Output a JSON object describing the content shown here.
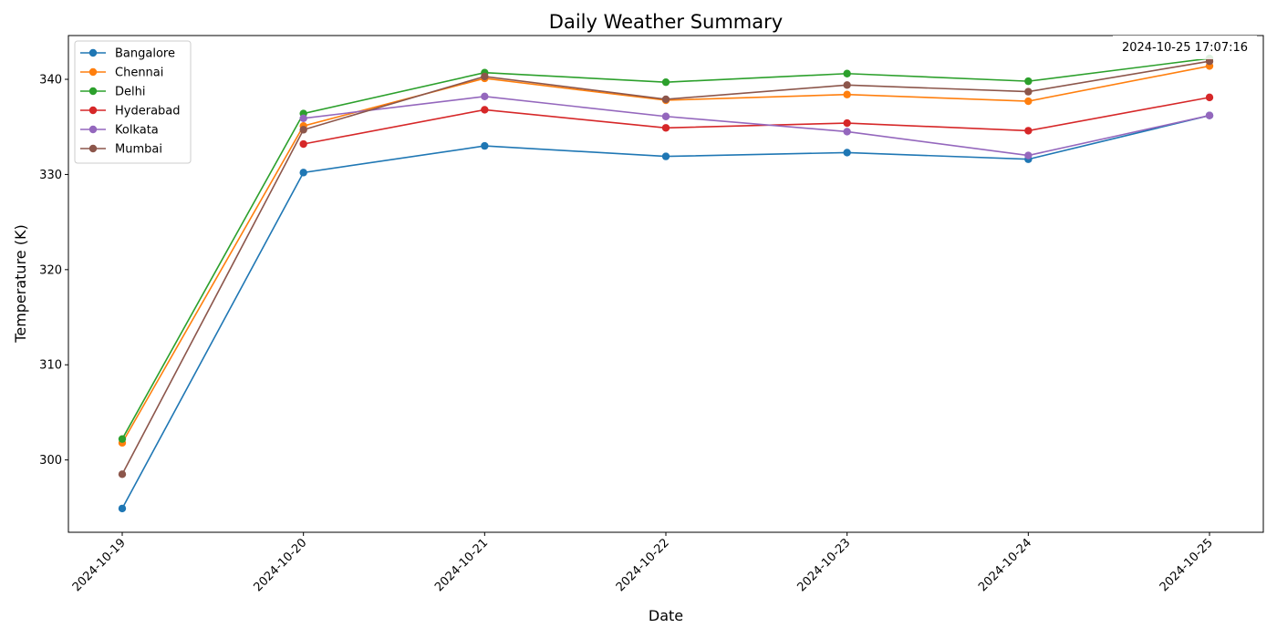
{
  "chart_data": {
    "type": "line",
    "title": "Daily Weather Summary",
    "xlabel": "Date",
    "ylabel": "Temperature (K)",
    "timestamp": "2024-10-25 17:07:16",
    "categories": [
      "2024-10-19",
      "2024-10-20",
      "2024-10-21",
      "2024-10-22",
      "2024-10-23",
      "2024-10-24",
      "2024-10-25"
    ],
    "ylim": [
      292.4,
      344.6
    ],
    "yticks": [
      300,
      310,
      320,
      330,
      340
    ],
    "grid": false,
    "legend_position": "top-left",
    "series": [
      {
        "name": "Bangalore",
        "color": "#1f77b4",
        "values": [
          294.9,
          330.2,
          333.0,
          331.9,
          332.3,
          331.6,
          336.2
        ]
      },
      {
        "name": "Chennai",
        "color": "#ff7f0e",
        "values": [
          301.8,
          335.1,
          340.1,
          337.8,
          338.4,
          337.7,
          341.4
        ]
      },
      {
        "name": "Delhi",
        "color": "#2ca02c",
        "values": [
          302.2,
          336.4,
          340.7,
          339.7,
          340.6,
          339.8,
          342.2
        ]
      },
      {
        "name": "Hyderabad",
        "color": "#d62728",
        "values": [
          null,
          333.2,
          336.8,
          334.9,
          335.4,
          334.6,
          338.1
        ]
      },
      {
        "name": "Kolkata",
        "color": "#9467bd",
        "values": [
          null,
          335.9,
          338.2,
          336.1,
          334.5,
          332.0,
          336.2
        ]
      },
      {
        "name": "Mumbai",
        "color": "#8c564b",
        "values": [
          298.5,
          334.7,
          340.3,
          337.9,
          339.4,
          338.7,
          341.9
        ]
      }
    ]
  }
}
